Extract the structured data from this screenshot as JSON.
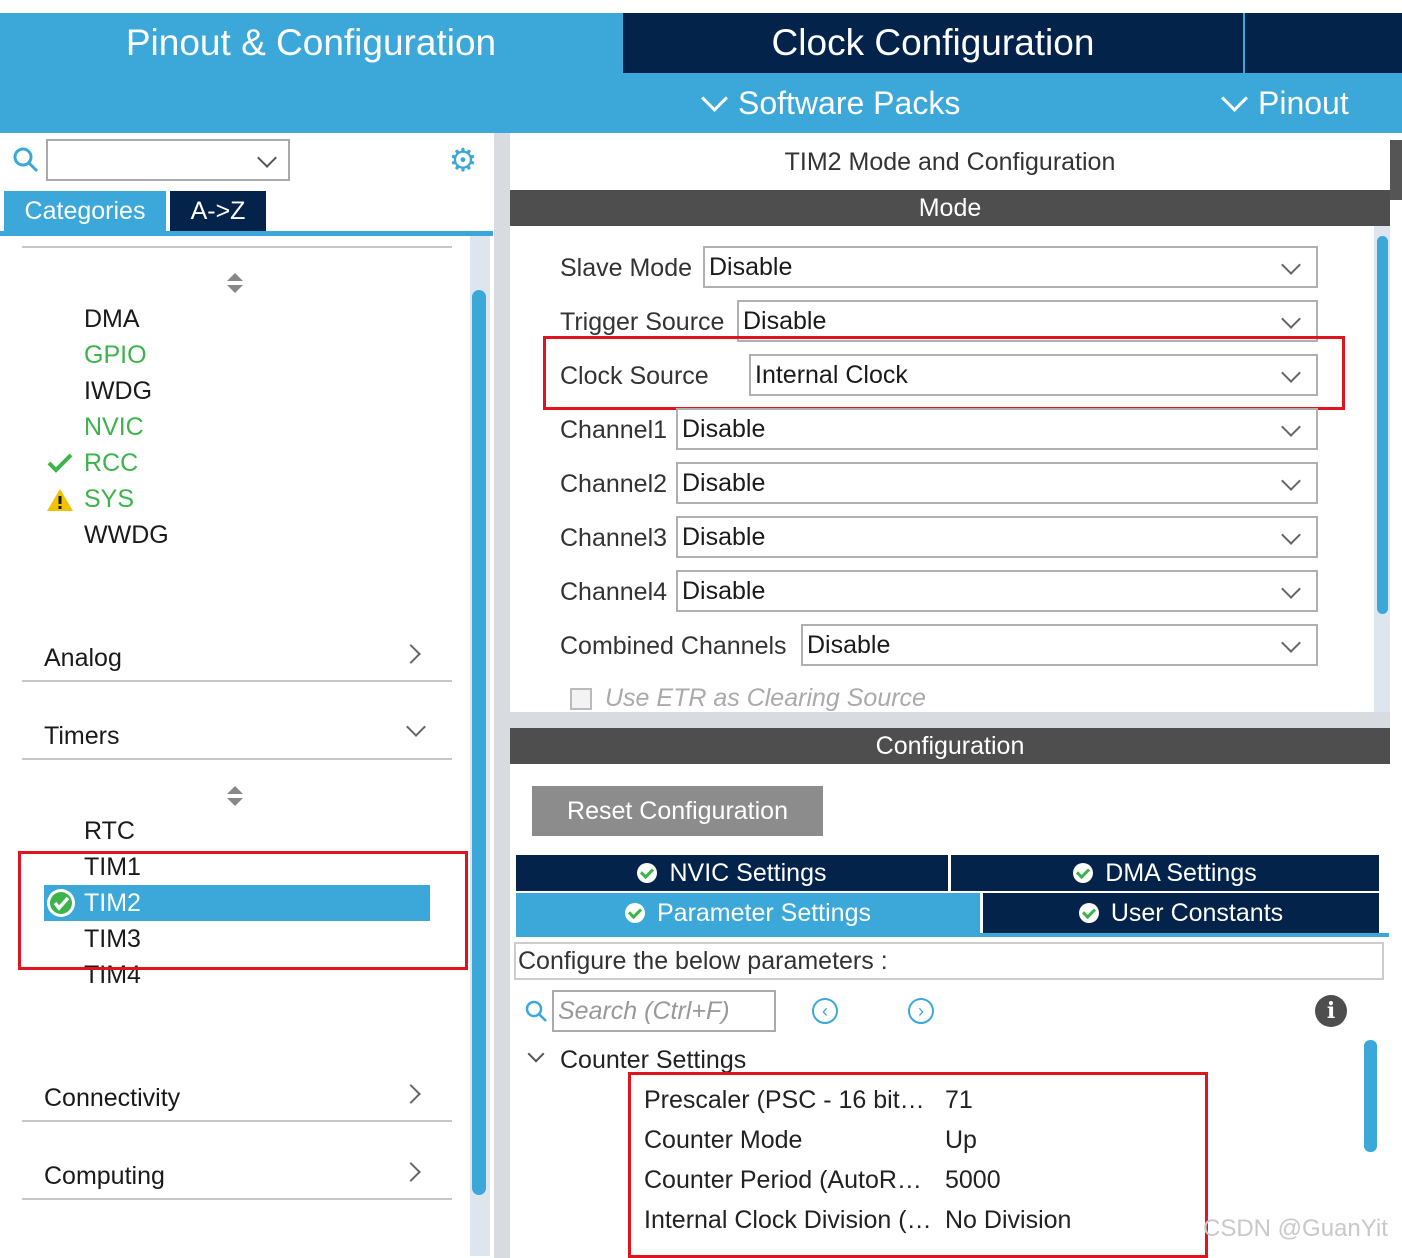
{
  "header": {
    "tab_pinout": "Pinout & Configuration",
    "tab_clock": "Clock Configuration",
    "software_packs": "Software Packs",
    "pinout": "Pinout"
  },
  "sidebar": {
    "search_value": "",
    "tab_categories": "Categories",
    "tab_az": "A->Z",
    "system_items": [
      {
        "label": "DMA",
        "status": "none"
      },
      {
        "label": "GPIO",
        "status": "configured"
      },
      {
        "label": "IWDG",
        "status": "none"
      },
      {
        "label": "NVIC",
        "status": "configured"
      },
      {
        "label": "RCC",
        "status": "ok"
      },
      {
        "label": "SYS",
        "status": "warning"
      },
      {
        "label": "WWDG",
        "status": "none"
      }
    ],
    "sections": {
      "analog": "Analog",
      "timers": "Timers",
      "connectivity": "Connectivity",
      "computing": "Computing"
    },
    "timer_items": [
      "RTC",
      "TIM1",
      "TIM2",
      "TIM3",
      "TIM4"
    ],
    "selected": "TIM2"
  },
  "panel": {
    "title": "TIM2 Mode and Configuration",
    "mode_header": "Mode",
    "fields": [
      {
        "label": "Slave Mode",
        "value": "Disable"
      },
      {
        "label": "Trigger Source",
        "value": "Disable"
      },
      {
        "label": "Clock Source",
        "value": "Internal Clock"
      },
      {
        "label": "Channel1",
        "value": "Disable"
      },
      {
        "label": "Channel2",
        "value": "Disable"
      },
      {
        "label": "Channel3",
        "value": "Disable"
      },
      {
        "label": "Channel4",
        "value": "Disable"
      },
      {
        "label": "Combined Channels",
        "value": "Disable"
      }
    ],
    "etr_label": "Use ETR as Clearing Source",
    "config_header": "Configuration",
    "reset_button": "Reset Configuration",
    "tabs": {
      "nvic": "NVIC Settings",
      "dma": "DMA Settings",
      "parameter": "Parameter Settings",
      "user_constants": "User Constants"
    },
    "configure_text": "Configure the below parameters :",
    "search_placeholder": "Search (Ctrl+F)",
    "group": "Counter Settings",
    "params": [
      {
        "name": "Prescaler (PSC - 16 bit…",
        "value": "71"
      },
      {
        "name": "Counter Mode",
        "value": "Up"
      },
      {
        "name": "Counter Period (AutoR…",
        "value": "5000"
      },
      {
        "name": "Internal Clock Division (…",
        "value": "No Division"
      }
    ]
  },
  "watermark": "CSDN @GuanYit",
  "colors": {
    "accent": "#3ba8d9",
    "navy": "#03234b",
    "highlight": "#e0141e",
    "ok_green": "#3cb44b"
  }
}
